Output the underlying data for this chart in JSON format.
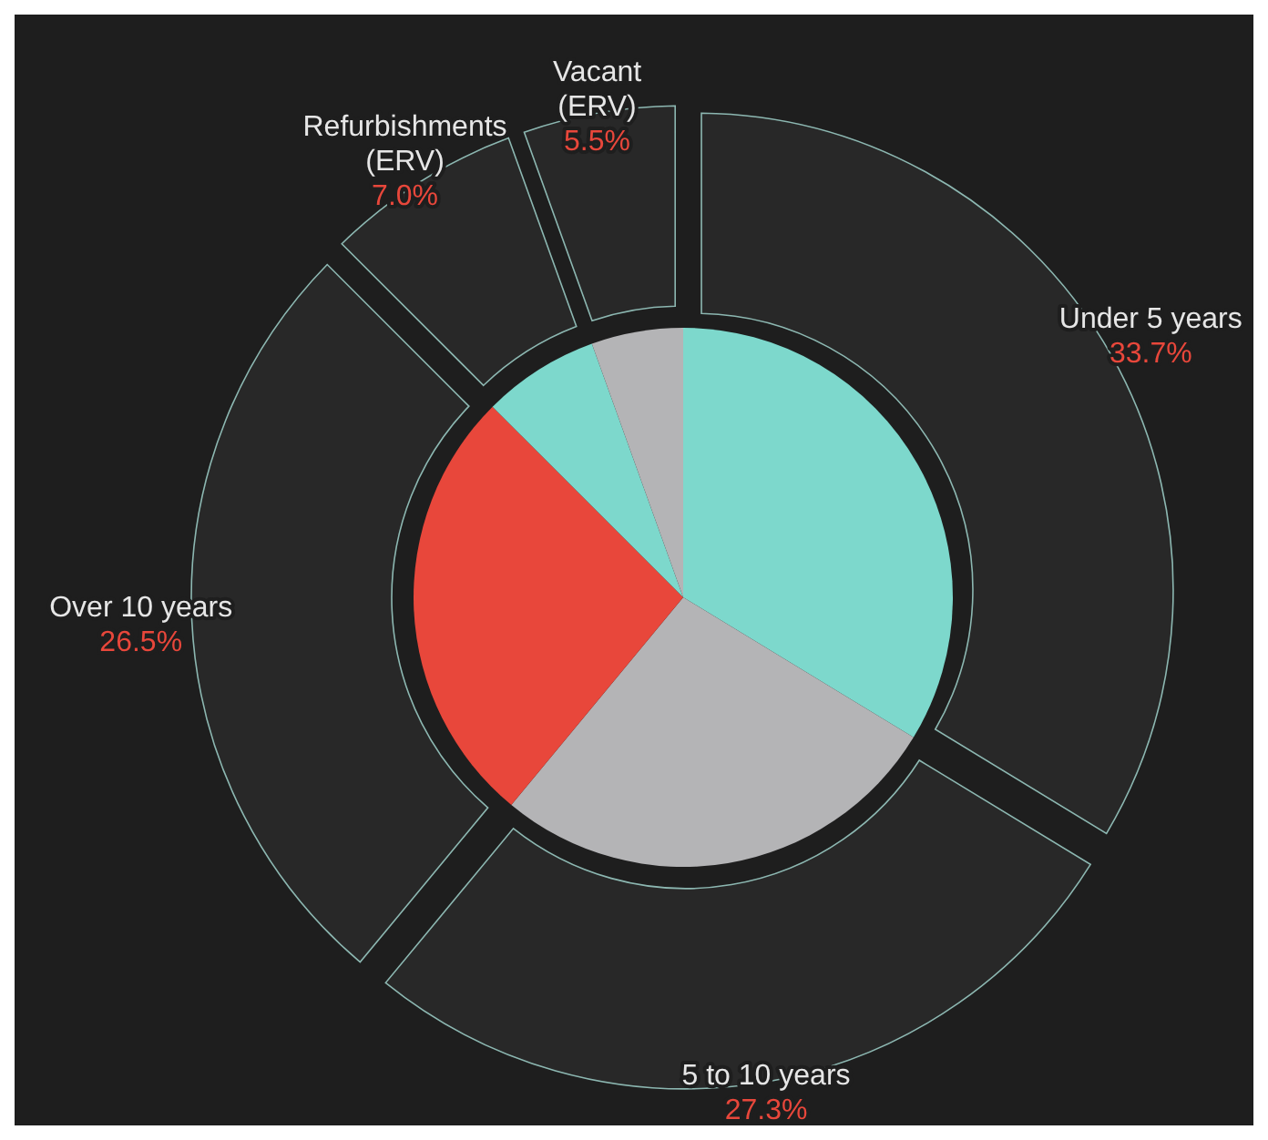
{
  "chart_data": {
    "type": "pie",
    "categories": [
      "Under 5 years",
      "5 to 10 years",
      "Over 10 years",
      "Refurbishments (ERV)",
      "Vacant (ERV)"
    ],
    "value_labels": [
      "33.7%",
      "27.3%",
      "26.5%",
      "7.0%",
      "5.5%"
    ],
    "series": [
      {
        "type": "donut",
        "values": [
          33.7,
          27.3,
          26.5,
          7.0,
          5.5
        ],
        "color": "#282828"
      },
      {
        "values": [
          33.7,
          27.3,
          26.5,
          7.0,
          5.5
        ],
        "colors": [
          "#7dd8cc",
          "#b4b4b6",
          "#e8473b",
          "#7dd8cc",
          "#b4b4b6"
        ]
      }
    ]
  }
}
